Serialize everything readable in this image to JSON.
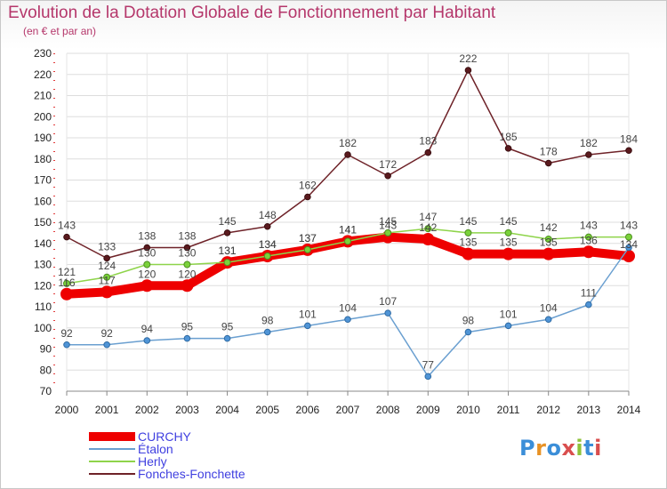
{
  "title": "Evolution de la Dotation Globale de Fonctionnement par Habitant",
  "subtitle": "(en € et par an)",
  "logo": {
    "text": "Proxiti",
    "colors": [
      "#3b8ed8",
      "#e89225",
      "#3b8ed8",
      "#d94e4e",
      "#8fc23a",
      "#3b8ed8",
      "#d94e4e"
    ]
  },
  "chart_data": {
    "type": "line",
    "title": "Evolution de la Dotation Globale de Fonctionnement par Habitant",
    "subtitle": "(en € et par an)",
    "ylim": [
      70,
      230
    ],
    "ytick_step": 10,
    "grid": true,
    "legend_position": "bottom-left",
    "x": [
      2000,
      2001,
      2002,
      2003,
      2004,
      2005,
      2006,
      2007,
      2008,
      2009,
      2010,
      2011,
      2012,
      2013,
      2014
    ],
    "series": [
      {
        "name": "CURCHY",
        "color": "#ee0000",
        "values": [
          116,
          117,
          120,
          120,
          131,
          134,
          137,
          141,
          143,
          142,
          135,
          135,
          135,
          136,
          134
        ],
        "labels": [
          "116",
          "117",
          "120",
          "120",
          "131",
          "134",
          "137",
          "141",
          "143",
          "142",
          "135",
          "135",
          "135",
          "136",
          "134"
        ]
      },
      {
        "name": "Étalon",
        "color": "#6a9fd0",
        "values": [
          92,
          92,
          94,
          95,
          95,
          98,
          101,
          104,
          107,
          77,
          98,
          101,
          104,
          111,
          138
        ],
        "labels": [
          "92",
          "92",
          "94",
          "95",
          "95",
          "98",
          "101",
          "104",
          "107",
          "77",
          "98",
          "101",
          "104",
          "111",
          ""
        ]
      },
      {
        "name": "Herly",
        "color": "#8ed44a",
        "values": [
          121,
          124,
          130,
          130,
          131,
          134,
          137,
          141,
          145,
          147,
          145,
          145,
          142,
          143,
          143
        ],
        "labels": [
          "121",
          "124",
          "130",
          "130",
          "131",
          "134",
          "137",
          "141",
          "145",
          "147",
          "145",
          "145",
          "142",
          "143",
          "143"
        ]
      },
      {
        "name": "Fonches-Fonchette",
        "color": "#6e2228",
        "values": [
          143,
          133,
          138,
          138,
          145,
          148,
          162,
          182,
          172,
          183,
          222,
          185,
          178,
          182,
          184
        ],
        "labels": [
          "143",
          "133",
          "138",
          "138",
          "145",
          "148",
          "162",
          "182",
          "172",
          "183",
          "222",
          "185",
          "178",
          "182",
          "184"
        ]
      }
    ]
  }
}
